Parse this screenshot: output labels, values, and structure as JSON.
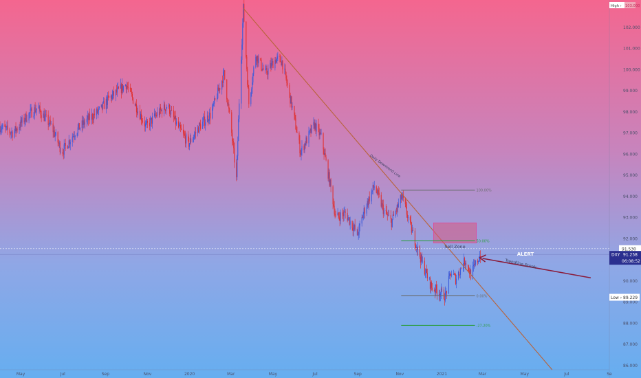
{
  "colors": {
    "bullish": "#3b5bdb",
    "bearish": "#e03131",
    "trendline": "#b8633a",
    "fib_line": "#6b6f73",
    "fib_green": "#2f9e44",
    "sell_zone": "#d9577f",
    "arrow": "#8a1c3b",
    "price_badge": "#2b2f8f"
  },
  "chart_data": {
    "type": "candlestick",
    "y_axis": {
      "ticks": [
        102,
        101,
        100,
        99,
        98,
        97,
        96,
        95,
        94,
        93,
        92,
        91,
        90,
        89,
        88,
        87,
        86
      ],
      "tick_labels": [
        "102.000",
        "101.000",
        "100.000",
        "99.000",
        "98.000",
        "97.000",
        "96.000",
        "95.000",
        "94.000",
        "93.000",
        "92.000",
        "91.000",
        "90.000",
        "89.000",
        "88.000",
        "87.000",
        "86.000"
      ],
      "range": [
        85.8,
        103.1
      ]
    },
    "x_axis": {
      "labels": [
        "May",
        "Jul",
        "Sep",
        "Nov",
        "2020",
        "Mar",
        "May",
        "Jul",
        "Sep",
        "Nov",
        "2021",
        "Mar",
        "May",
        "Jul",
        "Se"
      ],
      "dates": [
        "2019-05-01",
        "2019-07-01",
        "2019-09-01",
        "2019-11-01",
        "2020-01-01",
        "2020-03-01",
        "2020-05-01",
        "2020-07-01",
        "2020-09-01",
        "2020-11-01",
        "2021-01-01",
        "2021-03-01",
        "2021-05-01",
        "2021-07-01",
        "2021-09-01"
      ],
      "range": [
        "2019-04-01",
        "2021-09-01"
      ]
    },
    "price_path": [
      [
        "2019-04-01",
        97.3
      ],
      [
        "2019-04-20",
        97.0
      ],
      [
        "2019-05-10",
        97.8
      ],
      [
        "2019-05-25",
        98.2
      ],
      [
        "2019-06-15",
        97.3
      ],
      [
        "2019-06-30",
        96.1
      ],
      [
        "2019-07-20",
        97.1
      ],
      [
        "2019-08-05",
        97.6
      ],
      [
        "2019-08-25",
        98.1
      ],
      [
        "2019-09-05",
        98.6
      ],
      [
        "2019-09-20",
        99.0
      ],
      [
        "2019-10-01",
        99.3
      ],
      [
        "2019-10-15",
        98.3
      ],
      [
        "2019-10-30",
        97.3
      ],
      [
        "2019-11-15",
        97.9
      ],
      [
        "2019-11-30",
        98.3
      ],
      [
        "2019-12-15",
        97.3
      ],
      [
        "2019-12-31",
        96.5
      ],
      [
        "2020-01-15",
        97.3
      ],
      [
        "2020-02-01",
        97.9
      ],
      [
        "2020-02-15",
        99.3
      ],
      [
        "2020-02-20",
        99.8
      ],
      [
        "2020-03-01",
        97.3
      ],
      [
        "2020-03-09",
        94.8
      ],
      [
        "2020-03-13",
        98.5
      ],
      [
        "2020-03-19",
        102.9
      ],
      [
        "2020-03-27",
        98.4
      ],
      [
        "2020-04-06",
        100.7
      ],
      [
        "2020-04-20",
        99.8
      ],
      [
        "2020-05-05",
        100.5
      ],
      [
        "2020-05-14",
        100.4
      ],
      [
        "2020-05-29",
        98.2
      ],
      [
        "2020-06-10",
        96.1
      ],
      [
        "2020-06-30",
        97.4
      ],
      [
        "2020-07-10",
        96.8
      ],
      [
        "2020-07-24",
        94.4
      ],
      [
        "2020-07-31",
        93.0
      ],
      [
        "2020-08-14",
        93.2
      ],
      [
        "2020-09-01",
        92.2
      ],
      [
        "2020-09-10",
        93.3
      ],
      [
        "2020-09-25",
        94.5
      ],
      [
        "2020-10-09",
        93.3
      ],
      [
        "2020-10-20",
        92.8
      ],
      [
        "2020-11-04",
        94.0
      ],
      [
        "2020-11-20",
        92.2
      ],
      [
        "2020-12-04",
        90.8
      ],
      [
        "2020-12-17",
        89.7
      ],
      [
        "2021-01-06",
        89.3
      ],
      [
        "2021-01-14",
        90.4
      ],
      [
        "2021-01-21",
        90.1
      ],
      [
        "2021-02-04",
        91.0
      ],
      [
        "2021-02-12",
        90.3
      ],
      [
        "2021-02-26",
        91.26
      ]
    ],
    "annotations": {
      "high_label": "High ›",
      "high_value": "103.000",
      "low_label": "Low ›",
      "low_value": "89.229",
      "low": 89.229,
      "alert_level_label": "91.530",
      "alert_level": 91.53,
      "symbol": "DXY",
      "last_price_label": "91.258",
      "last_price": 91.258,
      "countdown": "06:08:52",
      "alert_text": "ALERT",
      "sell_zone_text": "Sell Zone",
      "trendline_text": "Daily Downtrend Line",
      "trendline_break_text": "Trendline Break",
      "sell_zone": {
        "start": "2020-12-20",
        "end": "2021-02-20",
        "low": 91.8,
        "high": 92.75
      },
      "trendline": {
        "start": [
          "2020-03-19",
          102.9
        ],
        "end": [
          "2021-06-10",
          85.8
        ]
      },
      "fib_levels": [
        {
          "label": "100.00%",
          "value": 94.3,
          "start": "2020-11-03",
          "end": "2021-02-18",
          "color": "gray"
        },
        {
          "label": "50.00%",
          "value": 91.9,
          "start": "2020-11-03",
          "end": "2021-02-18",
          "color": "green"
        },
        {
          "label": "0.00%",
          "value": 89.3,
          "start": "2020-11-03",
          "end": "2021-02-18",
          "color": "gray"
        },
        {
          "label": "-27.20%",
          "value": 87.9,
          "start": "2020-11-03",
          "end": "2021-02-18",
          "color": "green"
        }
      ]
    }
  }
}
